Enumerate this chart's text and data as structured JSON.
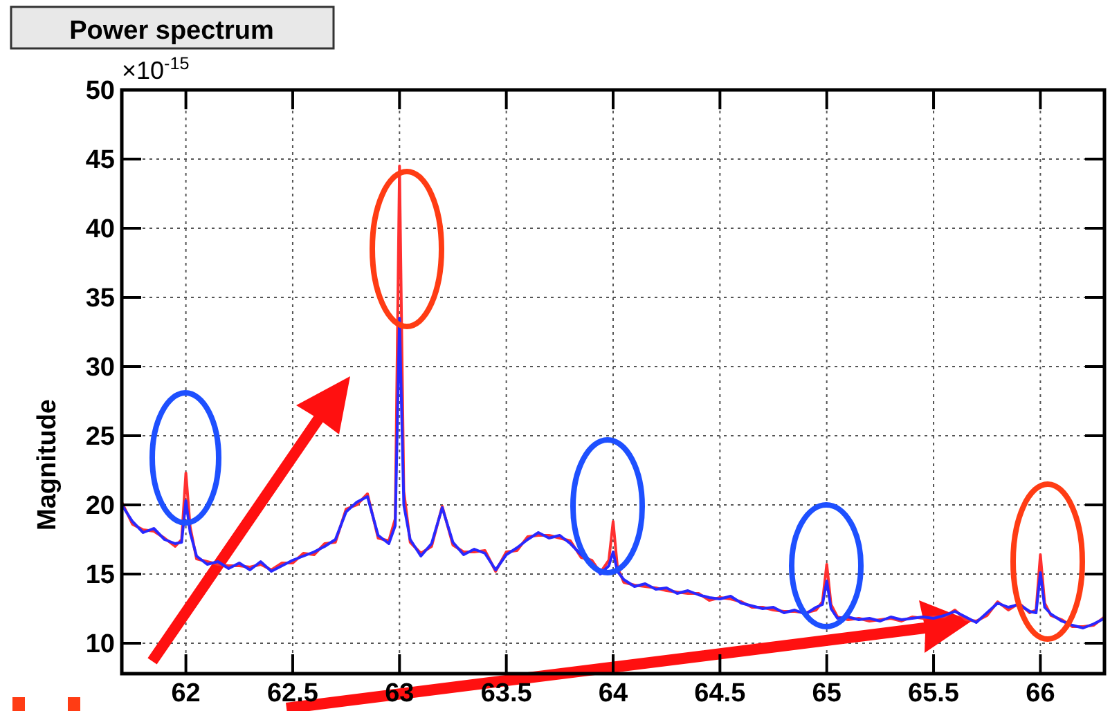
{
  "chart_data": {
    "type": "line",
    "title": "Power spectrum",
    "ylabel": "Magnitude",
    "annotations": [
      "×10$^{-15}$"
    ],
    "xlim": [
      61.7,
      66.3
    ],
    "xticks": [
      62,
      62.5,
      63,
      63.5,
      64,
      64.5,
      65,
      65.5,
      66
    ],
    "ylim": [
      7.8,
      50
    ],
    "yticks": [
      10,
      15,
      20,
      25,
      30,
      35,
      40,
      45,
      50
    ],
    "grid": true,
    "marker": "none",
    "line_style": "solid",
    "x": [
      61.7,
      61.75,
      61.8,
      61.85,
      61.9,
      61.95,
      61.98,
      62,
      62.02,
      62.05,
      62.1,
      62.15,
      62.2,
      62.25,
      62.3,
      62.35,
      62.4,
      62.45,
      62.5,
      62.55,
      62.6,
      62.65,
      62.7,
      62.75,
      62.8,
      62.85,
      62.9,
      62.95,
      62.98,
      63,
      63.02,
      63.05,
      63.1,
      63.15,
      63.2,
      63.25,
      63.3,
      63.35,
      63.4,
      63.45,
      63.5,
      63.55,
      63.6,
      63.65,
      63.7,
      63.75,
      63.8,
      63.85,
      63.9,
      63.94,
      63.98,
      64,
      64.02,
      64.05,
      64.1,
      64.15,
      64.2,
      64.25,
      64.3,
      64.35,
      64.4,
      64.45,
      64.5,
      64.55,
      64.6,
      64.65,
      64.7,
      64.75,
      64.8,
      64.85,
      64.9,
      64.95,
      64.98,
      65,
      65.02,
      65.05,
      65.1,
      65.15,
      65.2,
      65.25,
      65.3,
      65.35,
      65.4,
      65.45,
      65.5,
      65.55,
      65.6,
      65.65,
      65.7,
      65.75,
      65.8,
      65.85,
      65.9,
      65.95,
      65.98,
      66,
      66.02,
      66.05,
      66.1,
      66.15,
      66.2,
      66.25,
      66.3
    ],
    "series": [
      {
        "color": "#ff3030",
        "values": [
          20.2,
          18.6,
          18.2,
          18.1,
          17.6,
          17.0,
          17.5,
          22.3,
          18.4,
          16.1,
          15.9,
          15.7,
          15.6,
          15.6,
          15.5,
          15.7,
          15.3,
          15.8,
          15.8,
          16.5,
          16.4,
          17.2,
          17.3,
          19.7,
          20.0,
          20.8,
          17.6,
          17.4,
          19.0,
          44.5,
          21.0,
          17.3,
          16.5,
          17.0,
          19.9,
          17.1,
          16.6,
          16.6,
          16.7,
          15.2,
          16.6,
          16.7,
          17.7,
          17.8,
          17.8,
          17.6,
          17.4,
          16.2,
          16.0,
          15.1,
          16.0,
          18.8,
          15.5,
          14.4,
          14.2,
          14.1,
          14.0,
          13.8,
          13.7,
          13.6,
          13.6,
          13.1,
          13.3,
          13.2,
          13.0,
          12.6,
          12.6,
          12.4,
          12.3,
          12.3,
          12.2,
          12.4,
          13.0,
          15.7,
          12.8,
          11.9,
          11.7,
          11.8,
          11.6,
          11.7,
          11.8,
          11.6,
          11.9,
          11.8,
          11.9,
          11.9,
          12.4,
          11.7,
          11.6,
          12.0,
          13.0,
          12.4,
          12.9,
          12.2,
          12.4,
          16.4,
          12.9,
          12.0,
          11.7,
          11.2,
          11.2,
          11.3,
          11.9
        ]
      },
      {
        "color": "#2828ff",
        "values": [
          20.0,
          18.8,
          18.0,
          18.3,
          17.5,
          17.2,
          17.3,
          20.3,
          18.0,
          16.3,
          15.7,
          15.9,
          15.4,
          15.8,
          15.3,
          15.9,
          15.2,
          15.6,
          16.0,
          16.3,
          16.6,
          17.0,
          17.5,
          19.5,
          20.2,
          20.6,
          17.8,
          17.2,
          18.5,
          33.5,
          20.0,
          17.5,
          16.3,
          17.2,
          19.8,
          17.3,
          16.4,
          16.8,
          16.5,
          15.3,
          16.4,
          16.9,
          17.5,
          18.0,
          17.6,
          17.8,
          17.2,
          16.4,
          15.8,
          15.0,
          15.6,
          16.6,
          15.2,
          14.6,
          14.1,
          14.3,
          13.9,
          14.0,
          13.6,
          13.8,
          13.5,
          13.3,
          13.2,
          13.4,
          12.9,
          12.7,
          12.5,
          12.6,
          12.2,
          12.4,
          12.1,
          12.6,
          12.8,
          14.5,
          12.5,
          11.8,
          11.9,
          11.7,
          11.8,
          11.6,
          11.9,
          11.7,
          11.8,
          11.9,
          11.8,
          12.0,
          12.3,
          11.9,
          11.5,
          12.2,
          12.9,
          12.6,
          12.8,
          12.3,
          12.2,
          15.1,
          12.6,
          12.1,
          11.6,
          11.3,
          11.1,
          11.4,
          11.8
        ]
      }
    ]
  }
}
